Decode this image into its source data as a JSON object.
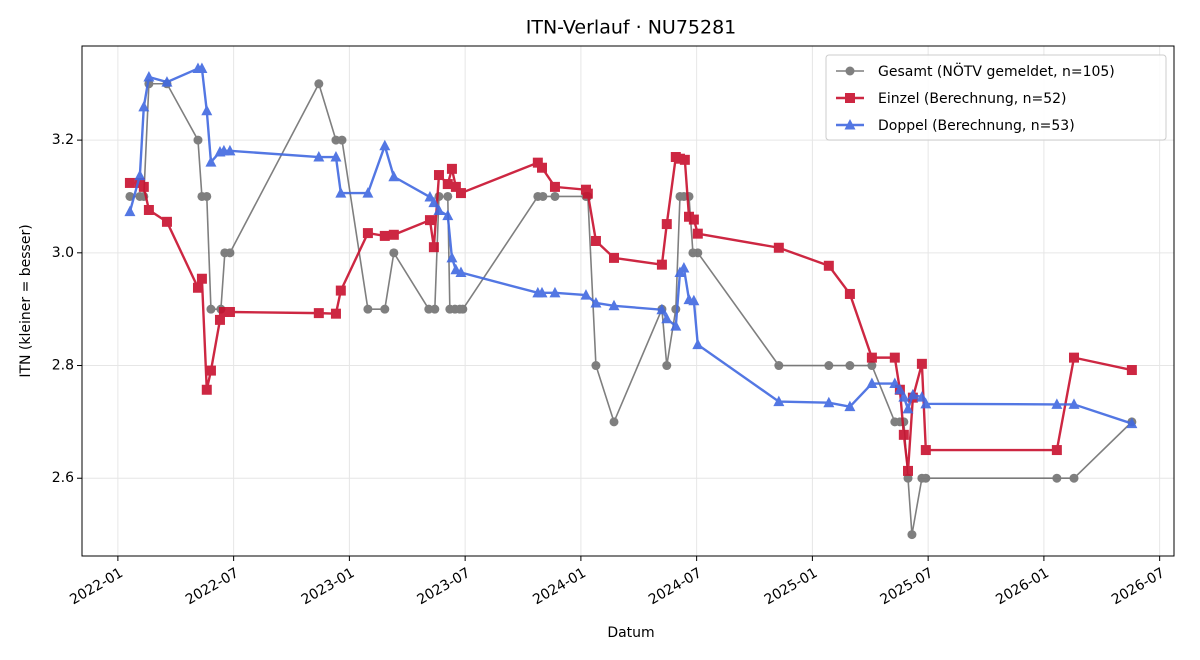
{
  "chart_data": {
    "type": "line",
    "title": "ITN-Verlauf · NU75281",
    "xlabel": "Datum",
    "ylabel": "ITN  (kleiner = besser)",
    "xlim": [
      2021.845,
      2026.562
    ],
    "ylim": [
      2.462,
      3.367
    ],
    "xticks": [
      {
        "value": 2022.0,
        "label": "2022-01"
      },
      {
        "value": 2022.5,
        "label": "2022-07"
      },
      {
        "value": 2023.0,
        "label": "2023-01"
      },
      {
        "value": 2023.5,
        "label": "2023-07"
      },
      {
        "value": 2024.0,
        "label": "2024-01"
      },
      {
        "value": 2024.5,
        "label": "2024-07"
      },
      {
        "value": 2025.0,
        "label": "2025-01"
      },
      {
        "value": 2025.5,
        "label": "2025-07"
      },
      {
        "value": 2026.0,
        "label": "2026-01"
      },
      {
        "value": 2026.5,
        "label": "2026-07"
      }
    ],
    "yticks": [
      2.6,
      2.8,
      {
        "value": 3,
        "label": "3.0"
      },
      3.2
    ],
    "grid": true,
    "legend": "upper right",
    "series": [
      {
        "name": "Gesamt (NÖTV gemeldet, n=105)",
        "color": "#555555",
        "marker": "circle",
        "x": [
          2022.052,
          2022.095,
          2022.112,
          2022.134,
          2022.212,
          2022.346,
          2022.363,
          2022.384,
          2022.402,
          2022.445,
          2022.462,
          2022.484,
          2022.868,
          2022.942,
          2022.968,
          2023.08,
          2023.153,
          2023.192,
          2023.343,
          2023.369,
          2023.387,
          2023.425,
          2023.434,
          2023.456,
          2023.477,
          2023.49,
          2023.814,
          2023.836,
          2023.888,
          2024.022,
          2024.03,
          2024.065,
          2024.143,
          2024.35,
          2024.371,
          2024.41,
          2024.428,
          2024.445,
          2024.467,
          2024.484,
          2024.505,
          2024.855,
          2025.071,
          2025.162,
          2025.257,
          2025.356,
          2025.378,
          2025.395,
          2025.413,
          2025.43,
          2025.473,
          2025.49,
          2026.056,
          2026.13,
          2026.38
        ],
        "values": [
          3.1,
          3.1,
          3.1,
          3.3,
          3.3,
          3.2,
          3.1,
          3.1,
          2.9,
          2.9,
          3.0,
          3.0,
          3.3,
          3.2,
          3.2,
          2.9,
          2.9,
          3.0,
          2.9,
          2.9,
          3.1,
          3.1,
          2.9,
          2.9,
          2.9,
          2.9,
          3.1,
          3.1,
          3.1,
          3.1,
          3.1,
          2.8,
          2.7,
          2.9,
          2.8,
          2.9,
          3.1,
          3.1,
          3.1,
          3.0,
          3.0,
          2.8,
          2.8,
          2.8,
          2.8,
          2.7,
          2.7,
          2.7,
          2.6,
          2.5,
          2.6,
          2.6,
          2.6,
          2.6,
          2.7
        ]
      },
      {
        "name": "Einzel (Berechnung, n=52)",
        "color": "#c8102e",
        "marker": "square",
        "x": [
          2022.052,
          2022.095,
          2022.112,
          2022.134,
          2022.212,
          2022.346,
          2022.363,
          2022.384,
          2022.402,
          2022.441,
          2022.458,
          2022.484,
          2022.868,
          2022.942,
          2022.963,
          2023.08,
          2023.153,
          2023.192,
          2023.348,
          2023.365,
          2023.387,
          2023.425,
          2023.443,
          2023.46,
          2023.482,
          2023.814,
          2023.832,
          2023.888,
          2024.022,
          2024.03,
          2024.065,
          2024.143,
          2024.35,
          2024.371,
          2024.41,
          2024.428,
          2024.449,
          2024.467,
          2024.488,
          2024.505,
          2024.855,
          2025.071,
          2025.162,
          2025.257,
          2025.356,
          2025.378,
          2025.395,
          2025.413,
          2025.434,
          2025.473,
          2025.49,
          2026.056,
          2026.13,
          2026.38
        ],
        "values": [
          3.124,
          3.124,
          3.117,
          3.076,
          3.055,
          2.938,
          2.954,
          2.757,
          2.791,
          2.881,
          2.895,
          2.895,
          2.893,
          2.892,
          2.933,
          3.035,
          3.03,
          3.032,
          3.058,
          3.01,
          3.138,
          3.122,
          3.149,
          3.117,
          3.106,
          3.16,
          3.151,
          3.117,
          3.112,
          3.105,
          3.021,
          2.991,
          2.979,
          3.051,
          3.17,
          3.167,
          3.165,
          3.064,
          3.059,
          3.034,
          3.009,
          2.977,
          2.927,
          2.814,
          2.814,
          2.757,
          2.677,
          2.613,
          2.743,
          2.803,
          2.65,
          2.65,
          2.814,
          2.792
        ]
      },
      {
        "name": "Doppel (Berechnung, n=53)",
        "color": "#4169e1",
        "marker": "triangle",
        "x": [
          2022.052,
          2022.095,
          2022.112,
          2022.134,
          2022.212,
          2022.346,
          2022.363,
          2022.384,
          2022.402,
          2022.441,
          2022.458,
          2022.484,
          2022.868,
          2022.942,
          2022.963,
          2023.08,
          2023.153,
          2023.192,
          2023.348,
          2023.365,
          2023.387,
          2023.425,
          2023.443,
          2023.46,
          2023.482,
          2023.814,
          2023.832,
          2023.888,
          2024.022,
          2024.065,
          2024.143,
          2024.35,
          2024.371,
          2024.41,
          2024.428,
          2024.445,
          2024.467,
          2024.488,
          2024.505,
          2024.855,
          2025.071,
          2025.162,
          2025.257,
          2025.356,
          2025.378,
          2025.395,
          2025.413,
          2025.434,
          2025.473,
          2025.49,
          2026.056,
          2026.13,
          2026.38
        ],
        "values": [
          3.073,
          3.137,
          3.259,
          3.312,
          3.303,
          3.327,
          3.327,
          3.252,
          3.161,
          3.179,
          3.181,
          3.181,
          3.17,
          3.17,
          3.106,
          3.106,
          3.19,
          3.135,
          3.099,
          3.089,
          3.075,
          3.066,
          2.991,
          2.97,
          2.965,
          2.929,
          2.929,
          2.929,
          2.925,
          2.911,
          2.906,
          2.899,
          2.883,
          2.87,
          2.965,
          2.973,
          2.917,
          2.915,
          2.837,
          2.736,
          2.734,
          2.727,
          2.768,
          2.768,
          2.757,
          2.744,
          2.723,
          2.748,
          2.744,
          2.732,
          2.731,
          2.731,
          2.697
        ]
      }
    ]
  }
}
